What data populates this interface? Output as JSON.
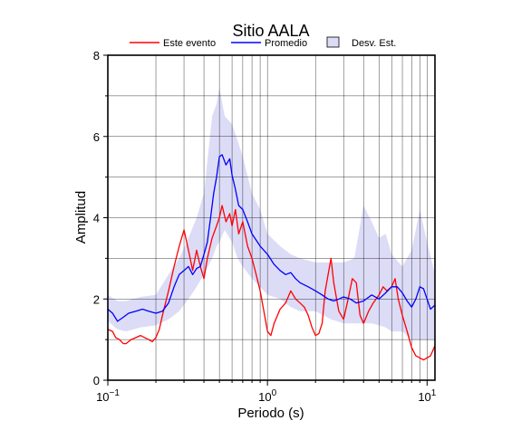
{
  "chart_data": {
    "type": "line",
    "title": "Sitio AALA",
    "xlabel": "Periodo (s)",
    "ylabel": "Amplitud",
    "x_scale": "log",
    "xlim": [
      0.1,
      11.2
    ],
    "ylim": [
      0,
      8
    ],
    "grid": true,
    "legend_position": "top",
    "x_ticks": [
      {
        "value": 0.1,
        "base": "10",
        "exp": "−1"
      },
      {
        "value": 1,
        "base": "10",
        "exp": "0"
      },
      {
        "value": 10,
        "base": "10",
        "exp": "1"
      }
    ],
    "y_ticks": [
      0,
      2,
      4,
      6,
      8
    ],
    "legend": [
      {
        "label": "Este evento",
        "kind": "line",
        "color": "#ff0000"
      },
      {
        "label": "Promedio",
        "kind": "line",
        "color": "#0000ff"
      },
      {
        "label": "Desv. Est.",
        "kind": "box",
        "color": "#dcdcf7"
      }
    ],
    "band": {
      "name": "Desv. Est.",
      "color": "#dcdcf7",
      "points": [
        [
          0.1,
          1.45,
          2.1
        ],
        [
          0.115,
          1.25,
          1.95
        ],
        [
          0.13,
          1.2,
          1.95
        ],
        [
          0.16,
          1.3,
          2.05
        ],
        [
          0.2,
          1.35,
          2.1
        ],
        [
          0.24,
          1.5,
          2.6
        ],
        [
          0.28,
          1.7,
          3.0
        ],
        [
          0.32,
          2.0,
          3.5
        ],
        [
          0.36,
          2.3,
          4.0
        ],
        [
          0.4,
          2.6,
          4.6
        ],
        [
          0.45,
          3.0,
          6.5
        ],
        [
          0.48,
          3.3,
          6.8
        ],
        [
          0.5,
          3.4,
          7.2
        ],
        [
          0.54,
          3.7,
          6.5
        ],
        [
          0.6,
          3.4,
          6.3
        ],
        [
          0.65,
          3.0,
          5.9
        ],
        [
          0.7,
          2.8,
          5.5
        ],
        [
          0.8,
          2.5,
          4.6
        ],
        [
          0.9,
          2.3,
          4.2
        ],
        [
          1.0,
          2.1,
          3.6
        ],
        [
          1.2,
          2.0,
          3.3
        ],
        [
          1.4,
          1.8,
          3.1
        ],
        [
          1.6,
          1.7,
          3.0
        ],
        [
          2.0,
          1.7,
          2.9
        ],
        [
          2.5,
          1.5,
          2.9
        ],
        [
          3.0,
          1.4,
          2.9
        ],
        [
          3.5,
          1.4,
          3.0
        ],
        [
          4.0,
          1.4,
          4.3
        ],
        [
          4.5,
          1.4,
          3.9
        ],
        [
          5.0,
          1.35,
          3.5
        ],
        [
          5.5,
          1.3,
          3.6
        ],
        [
          6.0,
          1.2,
          3.1
        ],
        [
          7.0,
          1.2,
          2.8
        ],
        [
          8.0,
          1.0,
          3.2
        ],
        [
          9.0,
          1.0,
          4.2
        ],
        [
          10.0,
          1.0,
          3.4
        ],
        [
          11.2,
          1.0,
          2.6
        ]
      ]
    },
    "series": [
      {
        "name": "Este evento",
        "color": "#ff0000",
        "points": [
          [
            0.1,
            1.25
          ],
          [
            0.107,
            1.2
          ],
          [
            0.112,
            1.05
          ],
          [
            0.118,
            1.0
          ],
          [
            0.125,
            0.9
          ],
          [
            0.13,
            0.9
          ],
          [
            0.14,
            1.0
          ],
          [
            0.15,
            1.05
          ],
          [
            0.16,
            1.1
          ],
          [
            0.17,
            1.05
          ],
          [
            0.18,
            1.0
          ],
          [
            0.19,
            0.95
          ],
          [
            0.2,
            1.05
          ],
          [
            0.21,
            1.25
          ],
          [
            0.22,
            1.6
          ],
          [
            0.24,
            2.2
          ],
          [
            0.26,
            2.8
          ],
          [
            0.28,
            3.3
          ],
          [
            0.3,
            3.7
          ],
          [
            0.32,
            3.2
          ],
          [
            0.34,
            2.7
          ],
          [
            0.36,
            3.2
          ],
          [
            0.38,
            2.8
          ],
          [
            0.4,
            2.5
          ],
          [
            0.42,
            3.0
          ],
          [
            0.45,
            3.5
          ],
          [
            0.48,
            3.8
          ],
          [
            0.5,
            4.0
          ],
          [
            0.52,
            4.3
          ],
          [
            0.55,
            3.9
          ],
          [
            0.58,
            4.1
          ],
          [
            0.6,
            3.8
          ],
          [
            0.63,
            4.2
          ],
          [
            0.66,
            3.6
          ],
          [
            0.7,
            3.9
          ],
          [
            0.75,
            3.3
          ],
          [
            0.8,
            3.0
          ],
          [
            0.85,
            2.6
          ],
          [
            0.9,
            2.2
          ],
          [
            0.95,
            1.7
          ],
          [
            1.0,
            1.2
          ],
          [
            1.05,
            1.1
          ],
          [
            1.1,
            1.4
          ],
          [
            1.2,
            1.75
          ],
          [
            1.3,
            1.9
          ],
          [
            1.4,
            2.2
          ],
          [
            1.5,
            2.0
          ],
          [
            1.6,
            1.9
          ],
          [
            1.7,
            1.8
          ],
          [
            1.8,
            1.6
          ],
          [
            1.9,
            1.3
          ],
          [
            2.0,
            1.1
          ],
          [
            2.1,
            1.15
          ],
          [
            2.2,
            1.4
          ],
          [
            2.3,
            2.2
          ],
          [
            2.4,
            2.6
          ],
          [
            2.5,
            3.0
          ],
          [
            2.6,
            2.4
          ],
          [
            2.8,
            1.7
          ],
          [
            3.0,
            1.5
          ],
          [
            3.2,
            2.0
          ],
          [
            3.4,
            2.5
          ],
          [
            3.6,
            2.4
          ],
          [
            3.8,
            1.6
          ],
          [
            4.0,
            1.4
          ],
          [
            4.3,
            1.7
          ],
          [
            4.6,
            1.9
          ],
          [
            5.0,
            2.1
          ],
          [
            5.3,
            2.3
          ],
          [
            5.6,
            2.2
          ],
          [
            6.0,
            2.3
          ],
          [
            6.3,
            2.5
          ],
          [
            6.6,
            2.0
          ],
          [
            7.0,
            1.6
          ],
          [
            7.5,
            1.2
          ],
          [
            8.0,
            0.8
          ],
          [
            8.5,
            0.6
          ],
          [
            9.0,
            0.55
          ],
          [
            9.5,
            0.5
          ],
          [
            10.0,
            0.55
          ],
          [
            10.5,
            0.6
          ],
          [
            11.2,
            0.85
          ]
        ]
      },
      {
        "name": "Promedio",
        "color": "#0000ff",
        "points": [
          [
            0.1,
            1.75
          ],
          [
            0.107,
            1.65
          ],
          [
            0.115,
            1.45
          ],
          [
            0.125,
            1.55
          ],
          [
            0.135,
            1.65
          ],
          [
            0.15,
            1.7
          ],
          [
            0.165,
            1.75
          ],
          [
            0.18,
            1.7
          ],
          [
            0.2,
            1.65
          ],
          [
            0.22,
            1.7
          ],
          [
            0.24,
            1.9
          ],
          [
            0.26,
            2.3
          ],
          [
            0.28,
            2.6
          ],
          [
            0.3,
            2.7
          ],
          [
            0.32,
            2.8
          ],
          [
            0.34,
            2.6
          ],
          [
            0.36,
            2.75
          ],
          [
            0.38,
            2.8
          ],
          [
            0.4,
            3.1
          ],
          [
            0.42,
            3.4
          ],
          [
            0.44,
            4.0
          ],
          [
            0.46,
            4.6
          ],
          [
            0.48,
            5.0
          ],
          [
            0.5,
            5.5
          ],
          [
            0.52,
            5.55
          ],
          [
            0.55,
            5.3
          ],
          [
            0.58,
            5.45
          ],
          [
            0.6,
            5.05
          ],
          [
            0.63,
            4.7
          ],
          [
            0.66,
            4.3
          ],
          [
            0.7,
            4.2
          ],
          [
            0.75,
            3.9
          ],
          [
            0.8,
            3.6
          ],
          [
            0.85,
            3.45
          ],
          [
            0.9,
            3.3
          ],
          [
            1.0,
            3.1
          ],
          [
            1.1,
            2.85
          ],
          [
            1.2,
            2.7
          ],
          [
            1.3,
            2.6
          ],
          [
            1.4,
            2.65
          ],
          [
            1.5,
            2.5
          ],
          [
            1.6,
            2.4
          ],
          [
            1.8,
            2.3
          ],
          [
            2.0,
            2.2
          ],
          [
            2.2,
            2.1
          ],
          [
            2.4,
            2.0
          ],
          [
            2.6,
            1.95
          ],
          [
            2.8,
            2.0
          ],
          [
            3.0,
            2.05
          ],
          [
            3.3,
            2.0
          ],
          [
            3.6,
            1.9
          ],
          [
            4.0,
            1.95
          ],
          [
            4.5,
            2.1
          ],
          [
            5.0,
            2.0
          ],
          [
            5.5,
            2.15
          ],
          [
            6.0,
            2.3
          ],
          [
            6.5,
            2.3
          ],
          [
            7.0,
            2.15
          ],
          [
            7.5,
            1.95
          ],
          [
            8.0,
            1.8
          ],
          [
            8.5,
            2.0
          ],
          [
            9.0,
            2.3
          ],
          [
            9.5,
            2.25
          ],
          [
            10.0,
            2.0
          ],
          [
            10.5,
            1.75
          ],
          [
            11.2,
            1.85
          ]
        ]
      }
    ]
  }
}
